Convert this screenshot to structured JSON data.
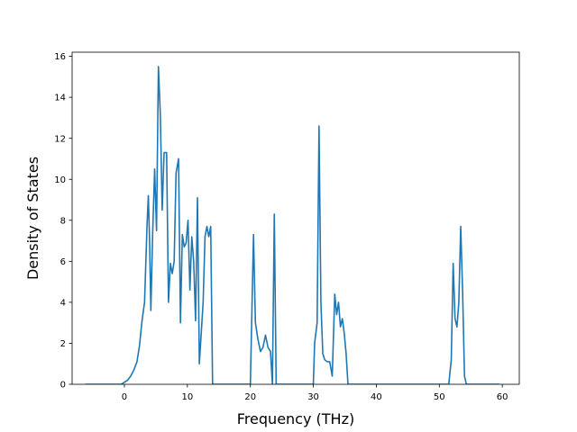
{
  "chart_data": {
    "type": "line",
    "title": "",
    "xlabel": "Frequency (THz)",
    "ylabel": "Density of States",
    "xlim": [
      -8.3,
      62.7
    ],
    "ylim": [
      0,
      16.2
    ],
    "xticks": [
      0,
      10,
      20,
      30,
      40,
      50,
      60
    ],
    "yticks": [
      0,
      2,
      4,
      6,
      8,
      10,
      12,
      14,
      16
    ],
    "grid": false,
    "legend": "none",
    "colors": {
      "line": "#1f77b4",
      "axes": "#000000"
    },
    "series": [
      {
        "x": [
          -6.2,
          -0.5,
          0.0,
          0.5,
          1.0,
          1.5,
          2.0,
          2.4,
          2.8,
          3.2,
          3.6,
          3.8,
          4.0,
          4.2,
          4.5,
          4.8,
          5.1,
          5.4,
          5.7,
          6.0,
          6.3,
          6.7,
          7.0,
          7.3,
          7.6,
          7.9,
          8.2,
          8.6,
          8.9,
          9.2,
          9.5,
          9.8,
          10.1,
          10.4,
          10.7,
          11.0,
          11.3,
          11.6,
          11.9,
          12.2,
          12.5,
          12.8,
          13.1,
          13.4,
          13.7,
          14.0,
          14.3,
          14.6,
          14.9,
          15.0,
          20.0,
          20.5,
          20.8,
          21.2,
          21.6,
          22.0,
          22.4,
          22.8,
          23.2,
          23.5,
          23.8,
          24.1,
          24.4,
          24.7,
          30.0,
          30.2,
          30.6,
          30.9,
          31.2,
          31.5,
          31.8,
          32.2,
          32.6,
          33.0,
          33.4,
          33.7,
          34.0,
          34.3,
          34.6,
          34.9,
          35.2,
          35.5,
          35.8,
          36.0,
          51.5,
          51.9,
          52.2,
          52.5,
          52.8,
          53.1,
          53.4,
          53.7,
          54.0,
          54.3,
          54.5,
          59.6
        ],
        "y": [
          0,
          0,
          0.1,
          0.2,
          0.4,
          0.7,
          1.1,
          1.9,
          3.1,
          4.0,
          7.8,
          9.2,
          7.0,
          3.6,
          7.5,
          10.5,
          7.5,
          15.5,
          13.2,
          8.5,
          11.3,
          11.3,
          4.0,
          5.9,
          5.4,
          6.0,
          10.3,
          11.0,
          3.0,
          7.3,
          6.7,
          6.9,
          8.0,
          4.6,
          7.2,
          6.0,
          3.1,
          9.1,
          1.0,
          2.5,
          4.0,
          7.2,
          7.7,
          7.2,
          7.7,
          0,
          0,
          0,
          0,
          0,
          0,
          7.3,
          3.0,
          2.2,
          1.6,
          1.8,
          2.4,
          1.8,
          1.6,
          0,
          8.3,
          0,
          0,
          0,
          0,
          2.0,
          3.0,
          12.6,
          4.0,
          1.5,
          1.2,
          1.1,
          1.1,
          0.4,
          4.4,
          3.4,
          4.0,
          2.8,
          3.2,
          2.5,
          1.5,
          0,
          0,
          0,
          0,
          1.2,
          5.9,
          3.2,
          2.8,
          4.0,
          7.7,
          4.5,
          0.4,
          0,
          0,
          0
        ]
      }
    ]
  }
}
